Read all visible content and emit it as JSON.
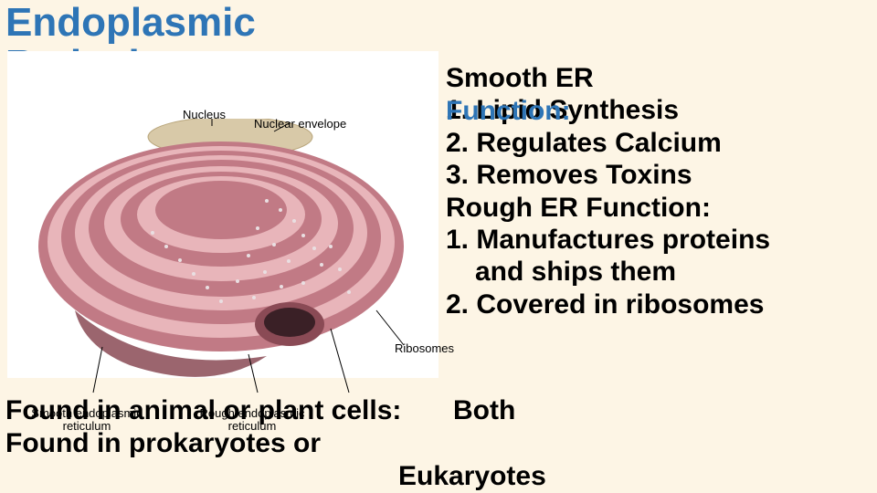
{
  "title": "Endoplasmic\nReticulum",
  "colors": {
    "background": "#fdf5e5",
    "title": "#2e75b6",
    "text": "#000000",
    "diagram_bg": "#ffffff",
    "er_outer": "#c17a85",
    "er_inner": "#e8b5ba",
    "er_dark": "#8a4a55",
    "nucleus": "#d8c9a8",
    "ribosome": "#555555"
  },
  "diagram": {
    "labels": {
      "nucleus": "Nucleus",
      "envelope": "Nuclear envelope",
      "ribosomes": "Ribosomes",
      "ser": "Smooth endoplasmic reticulum",
      "rer": "Rough endoplasmic reticulum"
    }
  },
  "right": {
    "ser_head": "Smooth ER",
    "func_label": "Function:",
    "ser1": "1. Lipid Synthesis",
    "ser2": "2. Regulates Calcium",
    "ser3": "3. Removes Toxins",
    "rer_head": "Rough ER Function:",
    "rer1": "1. Manufactures proteins",
    "rer1b": "and ships them",
    "rer2": "2. Covered in ribosomes"
  },
  "bottom": {
    "q1": "Found in animal or plant cells:",
    "a1": "Both",
    "q2": "Found in prokaryotes or",
    "a2": "Eukaryotes"
  },
  "fontsizes": {
    "title": 44,
    "body": 30,
    "diagram_label": 13
  }
}
